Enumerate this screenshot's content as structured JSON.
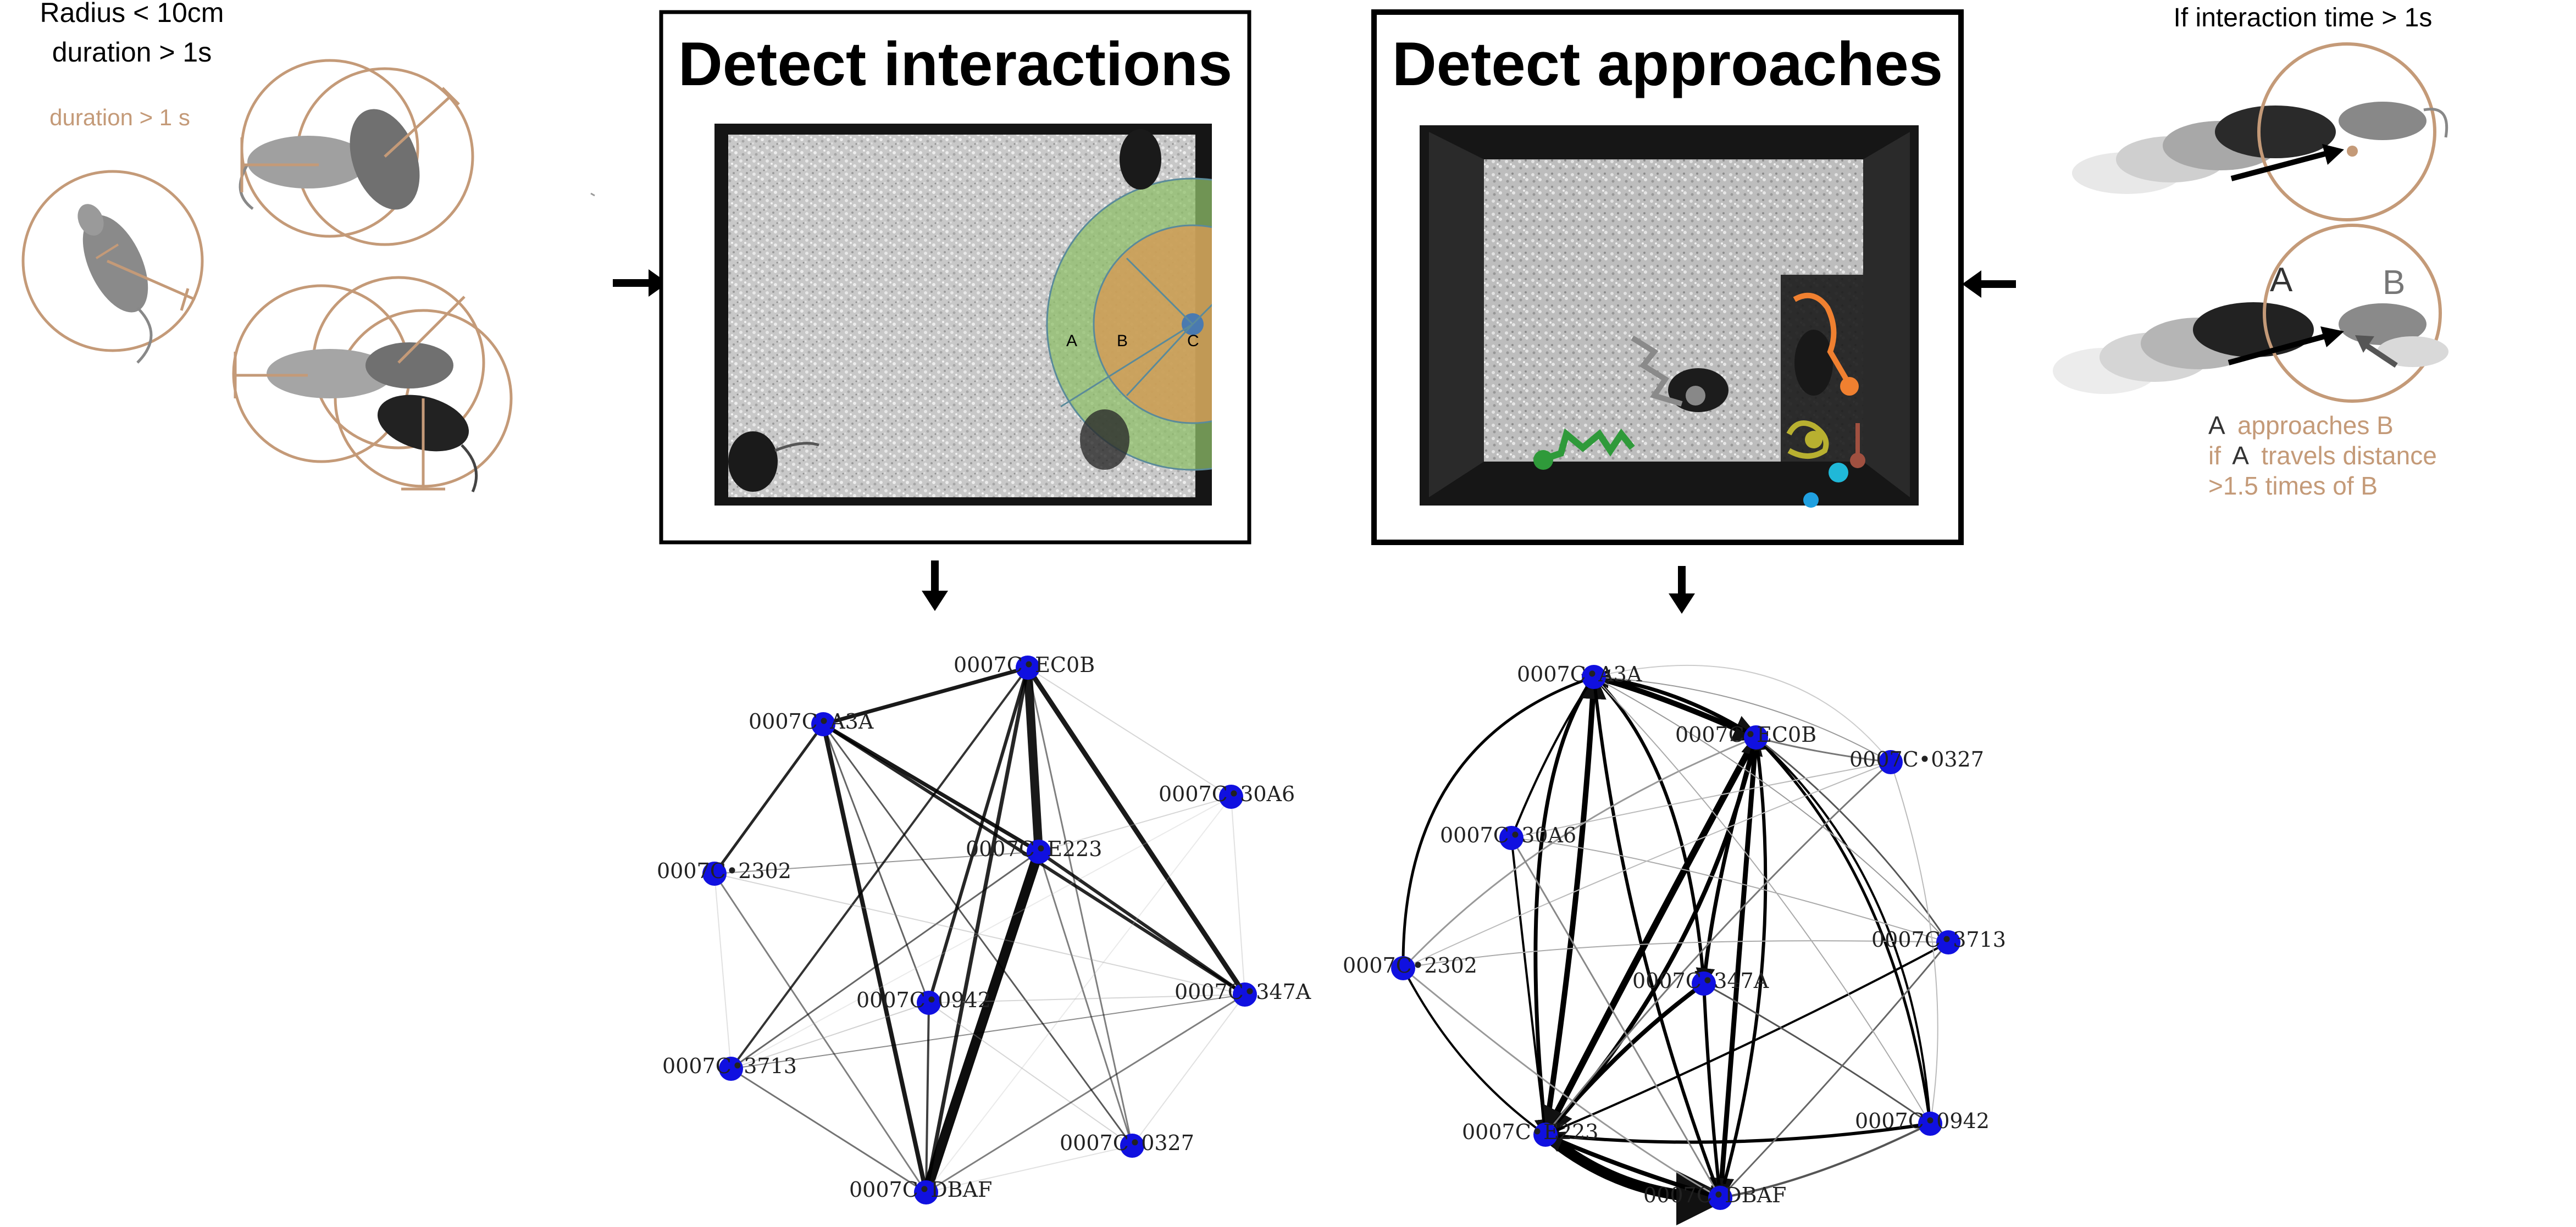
{
  "left_annotation": {
    "line1": "Radius < 10cm",
    "line2": "duration > 1s",
    "inner_label": "duration > 1 s"
  },
  "right_annotation": {
    "top_label": "If interaction time > 1s",
    "label_a": "A",
    "label_b": "B",
    "desc_line1_a": "A",
    "desc_line1_rest": "approaches B",
    "desc_line2_if": "if",
    "desc_line2_a": "A",
    "desc_line2_rest": "travels distance",
    "desc_line3": ">1.5 times of B"
  },
  "panel_interactions": {
    "title": "Detect interactions",
    "zone_labels": [
      "A",
      "B",
      "C"
    ]
  },
  "panel_approaches": {
    "title": "Detect approaches"
  },
  "graph_interactions": {
    "nodes": [
      {
        "id": "0007C_EC0B",
        "label": "0007C•EC0B"
      },
      {
        "id": "0007C_3A3A",
        "label": "0007C•A3A"
      },
      {
        "id": "0007C_30A6",
        "label": "0007C•30A6"
      },
      {
        "id": "0007C_E223",
        "label": "0007C•E223"
      },
      {
        "id": "0007C_2302",
        "label": "0007C•2302"
      },
      {
        "id": "0007C_0942",
        "label": "0007C•0942"
      },
      {
        "id": "0007C_347A",
        "label": "0007C•347A"
      },
      {
        "id": "0007C_3713",
        "label": "0007C•3713"
      },
      {
        "id": "0007C_0327",
        "label": "0007C•0327"
      },
      {
        "id": "0007C_DBAF",
        "label": "0007C•DBAF"
      }
    ]
  },
  "graph_approaches": {
    "nodes": [
      {
        "id": "0007C_3A3A",
        "label": "0007C•A3A"
      },
      {
        "id": "0007C_EC0B",
        "label": "0007C•EC0B"
      },
      {
        "id": "0007C_0327",
        "label": "0007C•0327"
      },
      {
        "id": "0007C_30A6",
        "label": "0007C•30A6"
      },
      {
        "id": "0007C_3713",
        "label": "0007C•3713"
      },
      {
        "id": "0007C_2302",
        "label": "0007C•2302"
      },
      {
        "id": "0007C_347A",
        "label": "0007C•347A"
      },
      {
        "id": "0007C_0942",
        "label": "0007C•0942"
      },
      {
        "id": "0007C_E223",
        "label": "0007C•E223"
      },
      {
        "id": "0007C_DBAF",
        "label": "0007C•DBAF"
      }
    ]
  },
  "colors": {
    "node_fill": "#1010e0",
    "tan": "#c49a78",
    "zone_green": "#8fbf6a",
    "zone_orange": "#d69a55",
    "track_orange": "#f08030",
    "track_green": "#2f9a3a",
    "track_olive": "#b8b030",
    "track_cyan": "#20b8d8"
  }
}
